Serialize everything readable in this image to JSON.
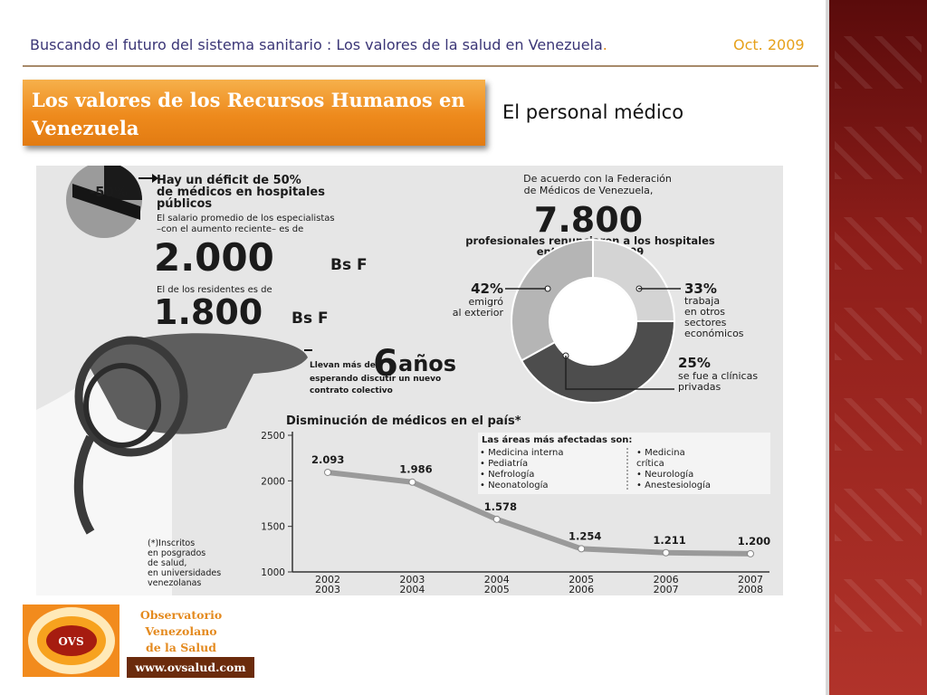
{
  "header": {
    "title": "Buscando el futuro del sistema sanitario : Los valores de la salud en Venezuela",
    "title_dot": ".",
    "date": "Oct. 2009"
  },
  "slide": {
    "section_title": "Los valores de los Recursos Humanos en Venezuela",
    "subtitle": "El personal médico"
  },
  "infographic": {
    "deficit_badge": "-50%",
    "deficit_lines": [
      "Hay un déficit de 50%",
      "de médicos en hospitales",
      "públicos"
    ],
    "salary_lines": [
      "El salario promedio de los especialistas",
      "–con el aumento reciente– es de"
    ],
    "salary_amount": "2.000",
    "salary_unit": "Bs F",
    "residents_label": "El de los residentes es de",
    "residents_amount": "1.800",
    "residents_unit": "Bs F",
    "years_lead": "Llevan más de",
    "years_num": "6",
    "years_word": "años",
    "years_lines": [
      "esperando discutir un nuevo",
      "contrato colectivo"
    ],
    "federation_lines": [
      "De acuerdo con la Federación",
      "de Médicos de Venezuela,"
    ],
    "big_number": "7.800",
    "resign_lines": [
      "profesionales renunciaron a los hospitales",
      "entre 2005 y 2009"
    ],
    "donut": {
      "slices": [
        {
          "pct": 42,
          "value_label": "42%",
          "lines": [
            "emigró",
            "al exterior"
          ],
          "color": "#4d4d4d"
        },
        {
          "pct": 33,
          "value_label": "33%",
          "lines": [
            "trabaja",
            "en otros",
            "sectores",
            "económicos"
          ],
          "color": "#b5b5b5"
        },
        {
          "pct": 25,
          "value_label": "25%",
          "lines": [
            "se fue a clínicas",
            "privadas"
          ],
          "color": "#d4d4d4"
        }
      ]
    },
    "footnote_lines": [
      "(*)Inscritos",
      "en posgrados",
      "de salud,",
      "en universidades",
      "venezolanas"
    ],
    "areas_title": "Las áreas más afectadas son:",
    "areas_col1": [
      "• Medicina interna",
      "• Pediatría",
      "• Nefrología",
      "• Neonatología"
    ],
    "areas_col2": [
      "• Medicina",
      "  crítica",
      "• Neurología",
      "• Anestesiología"
    ]
  },
  "chart_data": {
    "type": "line",
    "title": "Disminución de médicos en el país*",
    "categories": [
      "2002 2003",
      "2003 2004",
      "2004 2005",
      "2005 2006",
      "2006 2007",
      "2007 2008"
    ],
    "category_lines": [
      [
        "2002",
        "2003"
      ],
      [
        "2003",
        "2004"
      ],
      [
        "2004",
        "2005"
      ],
      [
        "2005",
        "2006"
      ],
      [
        "2006",
        "2007"
      ],
      [
        "2007",
        "2008"
      ]
    ],
    "values": [
      2093,
      1986,
      1578,
      1254,
      1211,
      1200
    ],
    "data_labels": [
      "2.093",
      "1.986",
      "1.578",
      "1.254",
      "1.211",
      "1.200"
    ],
    "ylim": [
      1000,
      2500
    ],
    "yticks": [
      1000,
      1500,
      2000,
      2500
    ],
    "xlabel": "",
    "ylabel": "",
    "grid": false,
    "line_color": "#9a9a9a"
  },
  "logo": {
    "text": "OVS",
    "name_lines": [
      "Observatorio",
      "Venezolano",
      "de la Salud"
    ],
    "url": "www.ovsalud.com"
  }
}
